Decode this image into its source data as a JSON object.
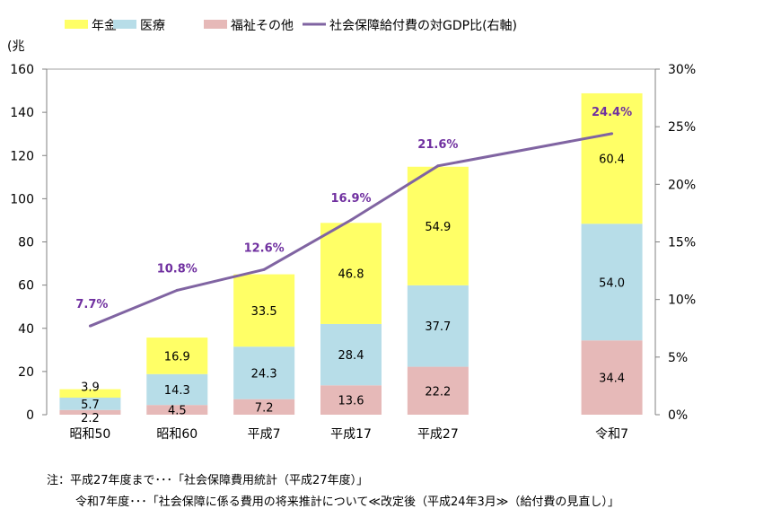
{
  "chart_data": {
    "type": "bar",
    "stacked": true,
    "categories": [
      "昭和50",
      "昭和60",
      "平成7",
      "平成17",
      "平成27",
      "",
      "令和7"
    ],
    "series": [
      {
        "name": "福祉その他",
        "values": [
          2.2,
          4.5,
          7.2,
          13.6,
          22.2,
          null,
          34.4
        ],
        "color": "#e6b9b8"
      },
      {
        "name": "医療",
        "values": [
          5.7,
          14.3,
          24.3,
          28.4,
          37.7,
          null,
          54.0
        ],
        "color": "#b7dde8"
      },
      {
        "name": "年金",
        "values": [
          3.9,
          16.9,
          33.5,
          46.8,
          54.9,
          null,
          60.4
        ],
        "color": "#ffff66"
      }
    ],
    "line_series": {
      "name": "社会保障給付費の対GDP比(右軸)",
      "axis": "right",
      "values": [
        7.7,
        10.8,
        12.6,
        16.9,
        21.6,
        null,
        24.4
      ],
      "labels": [
        "7.7%",
        "10.8%",
        "12.6%",
        "16.9%",
        "21.6%",
        "",
        "24.4%"
      ],
      "color": "#8064a2",
      "label_color": "#7030a0"
    },
    "ylabel": "(兆",
    "ylim": [
      0,
      160
    ],
    "yticks": [
      "0",
      "20",
      "40",
      "60",
      "80",
      "100",
      "120",
      "140",
      "160"
    ],
    "y2lim": [
      0,
      30
    ],
    "y2ticks": [
      "0%",
      "5%",
      "10%",
      "15%",
      "20%",
      "25%",
      "30%"
    ],
    "legend": "top",
    "grid": false
  },
  "notes": {
    "line1": "注：平成27年度まで･･･「社会保障費用統計（平成27年度）」",
    "line2": "令和7年度･･･「社会保障に係る費用の将来推計について≪改定後（平成24年3月≫（給付費の見直し）」"
  }
}
